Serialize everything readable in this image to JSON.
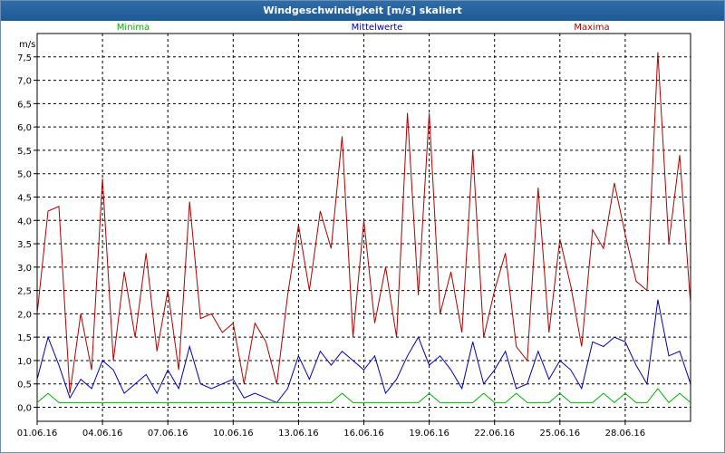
{
  "window": {
    "title": "Windgeschwindigkeit [m/s] skaliert"
  },
  "chart_data": {
    "type": "line",
    "title": "Windgeschwindigkeit [m/s] skaliert",
    "ylabel": "m/s",
    "xlabel": "",
    "ylim": [
      -0.3,
      8.0
    ],
    "xlim": [
      1.0,
      31.0
    ],
    "grid": true,
    "legend_placement": "top",
    "yticks": [
      0.0,
      0.5,
      1.0,
      1.5,
      2.0,
      2.5,
      3.0,
      3.5,
      4.0,
      4.5,
      5.0,
      5.5,
      6.0,
      6.5,
      7.0,
      7.5
    ],
    "ytick_labels": [
      "0,0",
      "0,5",
      "1,0",
      "1,5",
      "2,0",
      "2,5",
      "3,0",
      "3,5",
      "4,0",
      "4,5",
      "5,0",
      "5,5",
      "6,0",
      "6,5",
      "7,0",
      "7,5"
    ],
    "xticks": [
      1,
      4,
      7,
      10,
      13,
      16,
      19,
      22,
      25,
      28
    ],
    "xtick_labels": [
      "01.06.16",
      "04.06.16",
      "07.06.16",
      "10.06.16",
      "13.06.16",
      "16.06.16",
      "19.06.16",
      "22.06.16",
      "25.06.16",
      "28.06.16"
    ],
    "x": [
      1.0,
      1.5,
      2.0,
      2.5,
      3.0,
      3.5,
      4.0,
      4.5,
      5.0,
      5.5,
      6.0,
      6.5,
      7.0,
      7.5,
      8.0,
      8.5,
      9.0,
      9.5,
      10.0,
      10.5,
      11.0,
      11.5,
      12.0,
      12.5,
      13.0,
      13.5,
      14.0,
      14.5,
      15.0,
      15.5,
      16.0,
      16.5,
      17.0,
      17.5,
      18.0,
      18.5,
      19.0,
      19.5,
      20.0,
      20.5,
      21.0,
      21.5,
      22.0,
      22.5,
      23.0,
      23.5,
      24.0,
      24.5,
      25.0,
      25.5,
      26.0,
      26.5,
      27.0,
      27.5,
      28.0,
      28.5,
      29.0,
      29.5,
      30.0,
      30.5,
      31.0
    ],
    "series": [
      {
        "name": "Minima",
        "color": "#00b000",
        "values": [
          0.1,
          0.3,
          0.1,
          0.1,
          0.1,
          0.1,
          0.1,
          0.1,
          0.1,
          0.1,
          0.1,
          0.1,
          0.1,
          0.1,
          0.1,
          0.1,
          0.1,
          0.1,
          0.1,
          0.1,
          0.1,
          0.1,
          0.1,
          0.1,
          0.1,
          0.1,
          0.1,
          0.1,
          0.3,
          0.1,
          0.1,
          0.1,
          0.1,
          0.1,
          0.1,
          0.1,
          0.3,
          0.1,
          0.1,
          0.1,
          0.1,
          0.3,
          0.1,
          0.1,
          0.3,
          0.1,
          0.1,
          0.1,
          0.3,
          0.1,
          0.1,
          0.1,
          0.3,
          0.1,
          0.3,
          0.1,
          0.1,
          0.4,
          0.1,
          0.3,
          0.1
        ]
      },
      {
        "name": "Mittelwerte",
        "color": "#0000b0",
        "values": [
          0.6,
          1.5,
          0.9,
          0.2,
          0.6,
          0.4,
          1.0,
          0.8,
          0.3,
          0.5,
          0.7,
          0.3,
          0.8,
          0.4,
          1.3,
          0.5,
          0.4,
          0.5,
          0.6,
          0.2,
          0.3,
          0.2,
          0.1,
          0.4,
          1.1,
          0.6,
          1.2,
          0.9,
          1.2,
          1.0,
          0.8,
          1.1,
          0.3,
          0.6,
          1.1,
          1.5,
          0.9,
          1.1,
          0.8,
          0.4,
          1.4,
          0.5,
          0.8,
          1.2,
          0.4,
          0.5,
          1.2,
          0.6,
          1.0,
          0.8,
          0.4,
          1.4,
          1.3,
          1.5,
          1.4,
          0.9,
          0.5,
          2.3,
          1.1,
          1.2,
          0.5
        ]
      },
      {
        "name": "Maxima",
        "color": "#b00000",
        "values": [
          2.0,
          4.2,
          4.3,
          0.3,
          2.0,
          0.8,
          4.9,
          1.0,
          2.9,
          1.5,
          3.3,
          1.2,
          2.5,
          0.8,
          4.4,
          1.9,
          2.0,
          1.6,
          1.8,
          0.5,
          1.8,
          1.4,
          0.5,
          2.4,
          3.9,
          2.5,
          4.2,
          3.4,
          5.8,
          1.5,
          4.0,
          1.8,
          3.0,
          1.5,
          6.3,
          2.4,
          6.3,
          2.0,
          2.9,
          1.6,
          5.5,
          1.5,
          2.5,
          3.3,
          1.3,
          1.0,
          4.7,
          1.6,
          3.6,
          2.6,
          1.3,
          3.8,
          3.4,
          4.8,
          3.7,
          2.7,
          2.5,
          7.6,
          3.5,
          5.4,
          2.2
        ]
      }
    ]
  }
}
